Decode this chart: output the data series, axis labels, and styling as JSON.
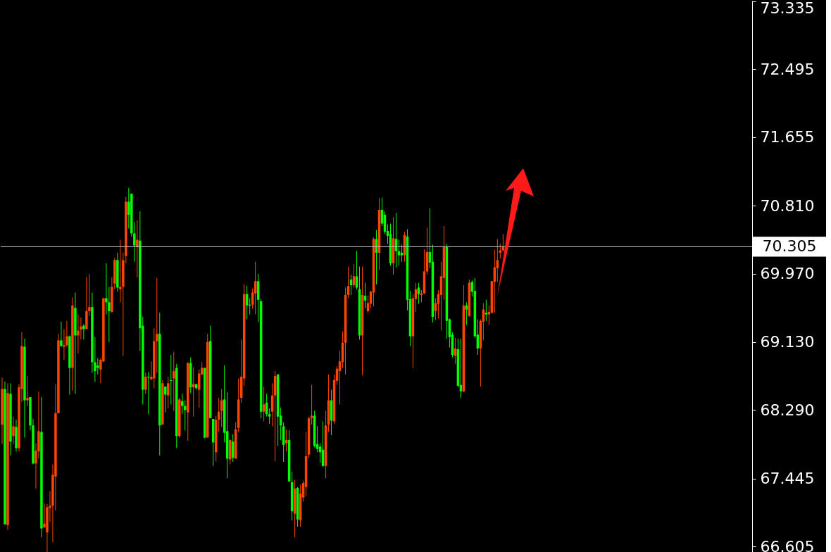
{
  "chart_data": {
    "type": "candlestick",
    "categories": [
      null,
      null,
      null,
      null,
      null,
      null,
      null,
      null,
      null,
      null,
      null,
      null,
      null,
      null,
      null,
      null,
      null,
      null,
      null,
      null,
      null,
      null,
      null,
      null,
      null,
      null,
      null,
      null,
      null,
      null,
      null,
      null,
      null,
      null,
      null,
      null,
      null,
      null,
      null,
      null,
      null,
      null,
      null,
      null,
      null,
      null,
      null,
      null,
      null,
      null,
      null,
      null,
      null,
      null,
      null,
      null,
      null,
      null,
      null,
      null,
      null,
      null,
      null,
      null,
      null,
      null,
      null,
      null,
      null,
      null,
      null,
      null,
      null,
      null,
      null,
      null,
      null,
      null,
      null,
      null,
      null,
      null,
      null,
      null,
      null,
      null,
      null,
      null,
      null,
      null,
      null,
      null,
      null,
      null,
      null,
      null,
      null,
      null,
      null,
      null,
      null,
      null,
      null,
      null,
      null,
      null,
      null,
      null,
      null,
      null,
      null,
      null,
      null,
      null,
      null,
      null,
      null,
      null,
      null,
      null,
      null,
      null,
      null,
      null,
      null,
      null,
      null,
      null,
      null,
      null,
      null,
      null,
      null,
      null,
      null,
      null,
      null,
      null,
      null,
      null,
      null,
      null,
      null,
      null,
      null,
      null,
      null,
      null,
      null,
      null,
      null,
      null,
      null,
      null,
      null,
      null,
      null,
      null,
      null,
      null,
      null,
      null,
      null,
      null,
      null,
      null,
      null,
      null,
      null,
      null,
      null,
      null,
      null,
      null,
      null,
      null,
      null,
      null,
      null,
      null,
      null,
      null,
      null,
      null,
      null,
      null,
      null,
      null,
      null,
      null,
      null,
      null,
      null,
      null,
      null,
      null,
      null,
      null,
      null,
      null,
      null,
      null,
      null,
      null,
      null,
      null,
      null,
      null,
      null,
      null,
      null,
      null,
      null,
      null,
      null,
      null,
      null,
      null,
      null,
      null,
      null,
      null,
      null,
      null,
      null,
      null,
      null,
      null,
      null,
      null,
      null,
      null,
      null,
      null,
      null,
      null,
      null,
      null,
      null,
      null,
      null,
      null,
      null,
      null,
      null,
      null,
      null,
      null,
      null,
      null,
      null,
      null,
      null,
      null,
      null,
      null,
      null,
      null,
      null,
      null,
      null,
      null,
      null,
      null,
      null,
      null,
      null
    ],
    "ohlc": [
      [
        68.11,
        68.69,
        67.87,
        68.55
      ],
      [
        68.55,
        68.64,
        66.88,
        66.88
      ],
      [
        66.87,
        68.62,
        66.81,
        68.5
      ],
      [
        68.49,
        68.62,
        67.73,
        67.9
      ],
      [
        67.97,
        68.21,
        67.87,
        68.09
      ],
      [
        68.08,
        68.17,
        67.78,
        67.82
      ],
      [
        67.82,
        68.61,
        67.78,
        68.57
      ],
      [
        68.55,
        69.25,
        68.39,
        69.08
      ],
      [
        69.07,
        69.17,
        67.95,
        68.41
      ],
      [
        68.41,
        68.71,
        68.34,
        68.44
      ],
      [
        68.45,
        68.45,
        68.04,
        68.1
      ],
      [
        68.1,
        68.18,
        67.62,
        67.63
      ],
      [
        67.63,
        67.88,
        67.32,
        67.79
      ],
      [
        67.78,
        68.52,
        67.69,
        68.03
      ],
      [
        68.02,
        68.45,
        66.72,
        66.83
      ],
      [
        66.84,
        67.14,
        66.84,
        66.89
      ],
      [
        66.78,
        67.13,
        66.54,
        67.09
      ],
      [
        67.08,
        67.29,
        66.91,
        67.11
      ],
      [
        67.11,
        67.62,
        66.66,
        67.49
      ],
      [
        67.47,
        68.61,
        67.05,
        68.25
      ],
      [
        68.25,
        69.23,
        68.25,
        69.15
      ],
      [
        69.15,
        69.38,
        69.07,
        69.08
      ],
      [
        69.07,
        69.29,
        68.91,
        69.09
      ],
      [
        69.09,
        69.39,
        69.07,
        69.2
      ],
      [
        69.2,
        69.21,
        68.48,
        68.81
      ],
      [
        68.81,
        69.68,
        68.53,
        69.58
      ],
      [
        69.55,
        69.74,
        68.49,
        69.21
      ],
      [
        69.21,
        69.47,
        68.99,
        69.27
      ],
      [
        69.28,
        69.43,
        69.16,
        69.32
      ],
      [
        69.33,
        69.35,
        69.16,
        69.29
      ],
      [
        69.29,
        69.93,
        69.29,
        69.51
      ],
      [
        69.51,
        69.97,
        69.45,
        69.56
      ],
      [
        69.56,
        69.74,
        68.75,
        68.88
      ],
      [
        68.88,
        69.19,
        68.64,
        68.77
      ],
      [
        68.84,
        68.93,
        68.73,
        68.81
      ],
      [
        68.79,
        68.93,
        68.62,
        68.91
      ],
      [
        68.89,
        69.67,
        68.88,
        69.67
      ],
      [
        69.67,
        70.1,
        69.47,
        69.62
      ],
      [
        69.62,
        69.81,
        69.13,
        69.51
      ],
      [
        69.5,
        69.93,
        69.49,
        69.81
      ],
      [
        69.85,
        70.17,
        69.78,
        70.14
      ],
      [
        70.14,
        70.23,
        69.75,
        69.8
      ],
      [
        69.78,
        70.39,
        69.62,
        69.81
      ],
      [
        69.81,
        70.23,
        68.96,
        70.14
      ],
      [
        70.19,
        70.92,
        70.1,
        70.86
      ],
      [
        70.86,
        71.03,
        70.53,
        70.7
      ],
      [
        70.96,
        70.96,
        70.43,
        70.47
      ],
      [
        70.47,
        70.61,
        70.12,
        70.32
      ],
      [
        70.3,
        70.63,
        69.93,
        70.39
      ],
      [
        70.38,
        70.74,
        69.02,
        69.3
      ],
      [
        69.33,
        69.44,
        68.36,
        68.54
      ],
      [
        68.54,
        68.75,
        68.49,
        68.7
      ],
      [
        68.7,
        68.76,
        68.24,
        68.69
      ],
      [
        68.67,
        68.89,
        68.66,
        68.7
      ],
      [
        68.68,
        69.3,
        68.56,
        69.14
      ],
      [
        69.14,
        69.92,
        68.75,
        69.23
      ],
      [
        69.23,
        69.49,
        67.73,
        68.1
      ],
      [
        68.11,
        68.66,
        68.11,
        68.62
      ],
      [
        68.58,
        68.58,
        68.26,
        68.48
      ],
      [
        68.47,
        68.7,
        68.31,
        68.62
      ],
      [
        68.66,
        68.97,
        68.36,
        68.65
      ],
      [
        68.68,
        69.01,
        68.28,
        68.77
      ],
      [
        68.81,
        68.86,
        67.82,
        67.97
      ],
      [
        67.97,
        68.44,
        67.95,
        68.42
      ],
      [
        68.4,
        68.49,
        68.24,
        68.34
      ],
      [
        68.34,
        68.41,
        68.04,
        68.29
      ],
      [
        68.26,
        68.88,
        67.91,
        68.87
      ],
      [
        68.87,
        68.94,
        68.5,
        68.57
      ],
      [
        68.57,
        68.82,
        68.21,
        68.61
      ],
      [
        68.61,
        68.61,
        68.54,
        68.56
      ],
      [
        68.54,
        68.79,
        68.32,
        68.74
      ],
      [
        68.73,
        68.88,
        68.72,
        68.81
      ],
      [
        68.81,
        68.81,
        67.94,
        67.95
      ],
      [
        67.95,
        69.23,
        67.95,
        69.13
      ],
      [
        69.14,
        69.33,
        68.19,
        68.19
      ],
      [
        68.18,
        68.18,
        67.6,
        67.89
      ],
      [
        67.77,
        68.22,
        67.66,
        68.17
      ],
      [
        68.17,
        68.44,
        68.02,
        68.27
      ],
      [
        68.28,
        68.55,
        68.08,
        68.41
      ],
      [
        68.42,
        68.84,
        67.89,
        68.01
      ],
      [
        68.03,
        68.51,
        67.45,
        67.69
      ],
      [
        67.68,
        67.93,
        67.62,
        67.92
      ],
      [
        67.9,
        67.99,
        67.65,
        67.7
      ],
      [
        67.69,
        68.14,
        67.69,
        68.05
      ],
      [
        68.07,
        68.68,
        68.02,
        68.42
      ],
      [
        68.44,
        69.16,
        68.38,
        68.7
      ],
      [
        68.68,
        69.84,
        68.59,
        69.72
      ],
      [
        69.72,
        69.82,
        69.41,
        69.58
      ],
      [
        69.59,
        69.67,
        69.47,
        69.58
      ],
      [
        69.59,
        69.79,
        69.54,
        69.74
      ],
      [
        69.73,
        70.12,
        69.47,
        69.88
      ],
      [
        69.88,
        69.97,
        69.38,
        69.65
      ],
      [
        69.63,
        69.66,
        68.19,
        68.27
      ],
      [
        68.27,
        68.58,
        68.15,
        68.36
      ],
      [
        68.38,
        68.49,
        68.21,
        68.24
      ],
      [
        68.24,
        68.31,
        68.12,
        68.21
      ],
      [
        68.27,
        68.62,
        68.09,
        68.47
      ],
      [
        68.47,
        68.77,
        67.66,
        68.71
      ],
      [
        68.73,
        68.73,
        67.85,
        68.21
      ],
      [
        68.22,
        68.32,
        67.92,
        68.1
      ],
      [
        68.09,
        68.14,
        67.65,
        67.86
      ],
      [
        67.88,
        68.05,
        67.78,
        67.92
      ],
      [
        67.92,
        68.04,
        67.4,
        67.41
      ],
      [
        67.4,
        67.53,
        66.93,
        67.04
      ],
      [
        67.01,
        67.43,
        66.72,
        67.32
      ],
      [
        67.33,
        67.34,
        66.85,
        66.94
      ],
      [
        66.93,
        67.37,
        66.85,
        67.26
      ],
      [
        67.21,
        67.42,
        67.16,
        67.39
      ],
      [
        67.34,
        68.02,
        67.23,
        67.72
      ],
      [
        67.74,
        68.21,
        67.7,
        68.19
      ],
      [
        68.19,
        68.6,
        68.11,
        68.22
      ],
      [
        68.22,
        68.28,
        67.83,
        67.85
      ],
      [
        67.87,
        68.09,
        67.77,
        67.81
      ],
      [
        67.84,
        67.88,
        67.64,
        67.77
      ],
      [
        67.8,
        68.15,
        67.59,
        67.6
      ],
      [
        67.6,
        68.28,
        67.45,
        68.1
      ],
      [
        68.11,
        68.73,
        68.02,
        68.41
      ],
      [
        68.41,
        68.54,
        67.98,
        68.16
      ],
      [
        68.15,
        68.73,
        68.12,
        68.66
      ],
      [
        68.65,
        68.83,
        68.6,
        68.8
      ],
      [
        68.77,
        69.02,
        68.36,
        68.89
      ],
      [
        68.88,
        69.26,
        68.81,
        69.12
      ],
      [
        69.12,
        69.8,
        68.73,
        69.71
      ],
      [
        69.71,
        70.06,
        69.67,
        69.82
      ],
      [
        69.9,
        69.96,
        69.71,
        69.83
      ],
      [
        69.83,
        70.09,
        69.8,
        69.94
      ],
      [
        69.94,
        70.25,
        69.78,
        69.8
      ],
      [
        69.78,
        70.06,
        69.16,
        69.21
      ],
      [
        69.21,
        70.06,
        68.72,
        69.71
      ],
      [
        69.7,
        69.86,
        69.55,
        69.64
      ],
      [
        69.51,
        69.7,
        69.49,
        69.61
      ],
      [
        69.6,
        69.76,
        69.55,
        69.75
      ],
      [
        69.74,
        70.42,
        69.57,
        70.4
      ],
      [
        70.4,
        70.51,
        69.84,
        70.23
      ],
      [
        70.23,
        70.9,
        70.02,
        70.76
      ],
      [
        70.76,
        70.91,
        70.56,
        70.59
      ],
      [
        70.7,
        70.74,
        70.46,
        70.49
      ],
      [
        70.5,
        70.58,
        70.34,
        70.44
      ],
      [
        70.46,
        70.59,
        70.07,
        70.1
      ],
      [
        70.1,
        70.67,
        69.96,
        70.41
      ],
      [
        70.4,
        70.72,
        70.05,
        70.25
      ],
      [
        70.25,
        70.39,
        70.07,
        70.2
      ],
      [
        70.23,
        70.33,
        70.12,
        70.2
      ],
      [
        70.2,
        70.49,
        70.12,
        70.45
      ],
      [
        70.43,
        70.52,
        69.52,
        69.65
      ],
      [
        69.66,
        69.76,
        69.08,
        69.2
      ],
      [
        69.2,
        69.72,
        68.81,
        69.67
      ],
      [
        69.66,
        69.86,
        69.5,
        69.78
      ],
      [
        69.8,
        69.86,
        69.6,
        69.72
      ],
      [
        69.71,
        69.77,
        69.62,
        69.73
      ],
      [
        69.73,
        70.27,
        69.72,
        70.0
      ],
      [
        70.0,
        70.54,
        69.96,
        70.24
      ],
      [
        70.24,
        70.78,
        70.04,
        70.11
      ],
      [
        70.12,
        70.33,
        69.37,
        69.44
      ],
      [
        69.51,
        69.67,
        69.4,
        69.61
      ],
      [
        69.6,
        69.77,
        69.42,
        69.72
      ],
      [
        69.71,
        70.12,
        69.27,
        69.94
      ],
      [
        69.92,
        70.56,
        69.65,
        70.3
      ],
      [
        70.3,
        70.34,
        69.17,
        69.39
      ],
      [
        69.41,
        69.42,
        69.06,
        69.19
      ],
      [
        69.22,
        69.25,
        68.94,
        68.97
      ],
      [
        68.96,
        69.18,
        68.86,
        69.05
      ],
      [
        69.04,
        69.17,
        68.57,
        68.59
      ],
      [
        68.6,
        69.17,
        68.44,
        68.52
      ],
      [
        68.52,
        69.83,
        68.51,
        69.58
      ],
      [
        69.58,
        69.62,
        69.34,
        69.53
      ],
      [
        69.45,
        69.9,
        69.44,
        69.86
      ],
      [
        69.87,
        69.89,
        69.69,
        69.75
      ],
      [
        69.76,
        69.92,
        69.18,
        69.2
      ],
      [
        69.22,
        69.41,
        68.97,
        69.05
      ],
      [
        69.05,
        69.41,
        68.58,
        69.39
      ],
      [
        69.38,
        69.61,
        69.15,
        69.53
      ],
      [
        69.49,
        69.65,
        69.39,
        69.47
      ],
      [
        69.47,
        69.58,
        69.34,
        69.5
      ],
      [
        69.49,
        69.88,
        69.48,
        69.88
      ],
      [
        69.87,
        70.27,
        69.49,
        70.05
      ],
      [
        70.04,
        70.4,
        69.87,
        70.14
      ],
      [
        70.23,
        70.34,
        70.16,
        70.26
      ],
      [
        70.26,
        70.46,
        70.25,
        70.3
      ],
      null,
      null,
      null,
      null,
      null,
      null,
      null,
      null,
      null,
      null,
      null,
      null,
      null,
      null,
      null,
      null,
      null,
      null,
      null,
      null,
      null,
      null,
      null,
      null,
      null,
      null,
      null,
      null,
      null,
      null,
      null,
      null,
      null,
      null,
      null,
      null,
      null,
      null,
      null,
      null,
      null,
      null,
      null,
      null,
      null,
      null,
      null,
      null,
      null,
      null,
      null,
      null,
      null,
      null,
      null,
      null,
      null,
      null,
      null,
      null,
      null,
      null,
      null,
      null,
      null,
      null,
      null,
      null,
      null,
      null,
      null,
      null,
      null,
      null,
      null,
      null,
      null,
      null,
      null,
      null,
      null,
      null,
      null,
      null,
      null,
      null,
      null,
      null
    ],
    "colors": [
      "#ff4500",
      "#00ff00",
      "#ff4500",
      "#00ff00",
      "#ff4500",
      "#00ff00",
      "#ff4500",
      "#ff4500",
      "#00ff00",
      "#ff4500",
      "#00ff00",
      "#00ff00",
      "#ff4500",
      "#ff4500",
      "#00ff00",
      "#ff4500",
      "#ff4500",
      "#ff4500",
      "#ff4500",
      "#ff4500",
      "#ff4500",
      "#00ff00",
      "#ff4500",
      "#ff4500",
      "#00ff00",
      "#ff4500",
      "#00ff00",
      "#ff4500",
      "#ff4500",
      "#00ff00",
      "#ff4500",
      "#ff4500",
      "#00ff00",
      "#00ff00",
      "#00ff00",
      "#ff4500",
      "#ff4500",
      "#00ff00",
      "#00ff00",
      "#ff4500",
      "#ff4500",
      "#00ff00",
      "#ff4500",
      "#ff4500",
      "#ff4500",
      "#00ff00",
      "#00ff00",
      "#00ff00",
      "#ff4500",
      "#00ff00",
      "#00ff00",
      "#ff4500",
      "#00ff00",
      "#ff4500",
      "#ff4500",
      "#ff4500",
      "#00ff00",
      "#ff4500",
      "#00ff00",
      "#ff4500",
      "#00ff00",
      "#ff4500",
      "#00ff00",
      "#ff4500",
      "#00ff00",
      "#00ff00",
      "#ff4500",
      "#00ff00",
      "#ff4500",
      "#00ff00",
      "#ff4500",
      "#ff4500",
      "#00ff00",
      "#ff4500",
      "#00ff00",
      "#00ff00",
      "#ff4500",
      "#ff4500",
      "#ff4500",
      "#00ff00",
      "#00ff00",
      "#ff4500",
      "#00ff00",
      "#ff4500",
      "#ff4500",
      "#ff4500",
      "#ff4500",
      "#00ff00",
      "#00ff00",
      "#ff4500",
      "#ff4500",
      "#00ff00",
      "#00ff00",
      "#ff4500",
      "#00ff00",
      "#00ff00",
      "#ff4500",
      "#ff4500",
      "#00ff00",
      "#00ff00",
      "#00ff00",
      "#ff4500",
      "#00ff00",
      "#00ff00",
      "#ff4500",
      "#00ff00",
      "#ff4500",
      "#ff4500",
      "#ff4500",
      "#ff4500",
      "#ff4500",
      "#00ff00",
      "#00ff00",
      "#00ff00",
      "#00ff00",
      "#ff4500",
      "#ff4500",
      "#00ff00",
      "#ff4500",
      "#ff4500",
      "#ff4500",
      "#ff4500",
      "#ff4500",
      "#ff4500",
      "#00ff00",
      "#ff4500",
      "#00ff00",
      "#00ff00",
      "#ff4500",
      "#00ff00",
      "#ff4500",
      "#ff4500",
      "#ff4500",
      "#00ff00",
      "#ff4500",
      "#00ff00",
      "#00ff00",
      "#00ff00",
      "#00ff00",
      "#ff4500",
      "#00ff00",
      "#00ff00",
      "#00ff00",
      "#ff4500",
      "#00ff00",
      "#00ff00",
      "#ff4500",
      "#ff4500",
      "#00ff00",
      "#ff4500",
      "#ff4500",
      "#ff4500",
      "#00ff00",
      "#00ff00",
      "#ff4500",
      "#ff4500",
      "#ff4500",
      "#ff4500",
      "#00ff00",
      "#00ff00",
      "#00ff00",
      "#ff4500",
      "#00ff00",
      "#00ff00",
      "#ff4500",
      "#00ff00",
      "#ff4500",
      "#00ff00",
      "#00ff00",
      "#00ff00",
      "#ff4500",
      "#ff4500",
      "#00ff00",
      "#ff4500",
      "#ff4500",
      "#ff4500",
      "#ff4500",
      "#ff4500",
      "#ff4500",
      null,
      null,
      null,
      null,
      null,
      null,
      null,
      null,
      null,
      null,
      null,
      null,
      null,
      null,
      null,
      null,
      null,
      null,
      null,
      null,
      null,
      null,
      null,
      null,
      null,
      null,
      null,
      null,
      null,
      null,
      null,
      null,
      null,
      null,
      null,
      null,
      null,
      null,
      null,
      null,
      null,
      null,
      null,
      null,
      null,
      null,
      null,
      null,
      null,
      null,
      null,
      null,
      null,
      null,
      null,
      null,
      null,
      null,
      null,
      null,
      null,
      null,
      null,
      null,
      null,
      null,
      null,
      null,
      null,
      null,
      null,
      null,
      null,
      null,
      null,
      null,
      null,
      null,
      null,
      null,
      null,
      null,
      null,
      null,
      null,
      null,
      null,
      null
    ],
    "ylim": [
      66.53,
      73.34
    ],
    "yticks": [
      66.605,
      67.445,
      {
        "value": 68.29,
        "label": "68.290"
      },
      {
        "value": 69.13,
        "label": "69.130"
      },
      {
        "value": 69.97,
        "label": "69.970"
      },
      {
        "value": 70.81,
        "label": "70.810"
      },
      71.655,
      72.495,
      73.335
    ],
    "ref_lines": [
      {
        "axis": "y",
        "value": 70.305,
        "label": "70.305",
        "color": "#c8c8c8"
      }
    ],
    "tick_labels": "y"
  }
}
